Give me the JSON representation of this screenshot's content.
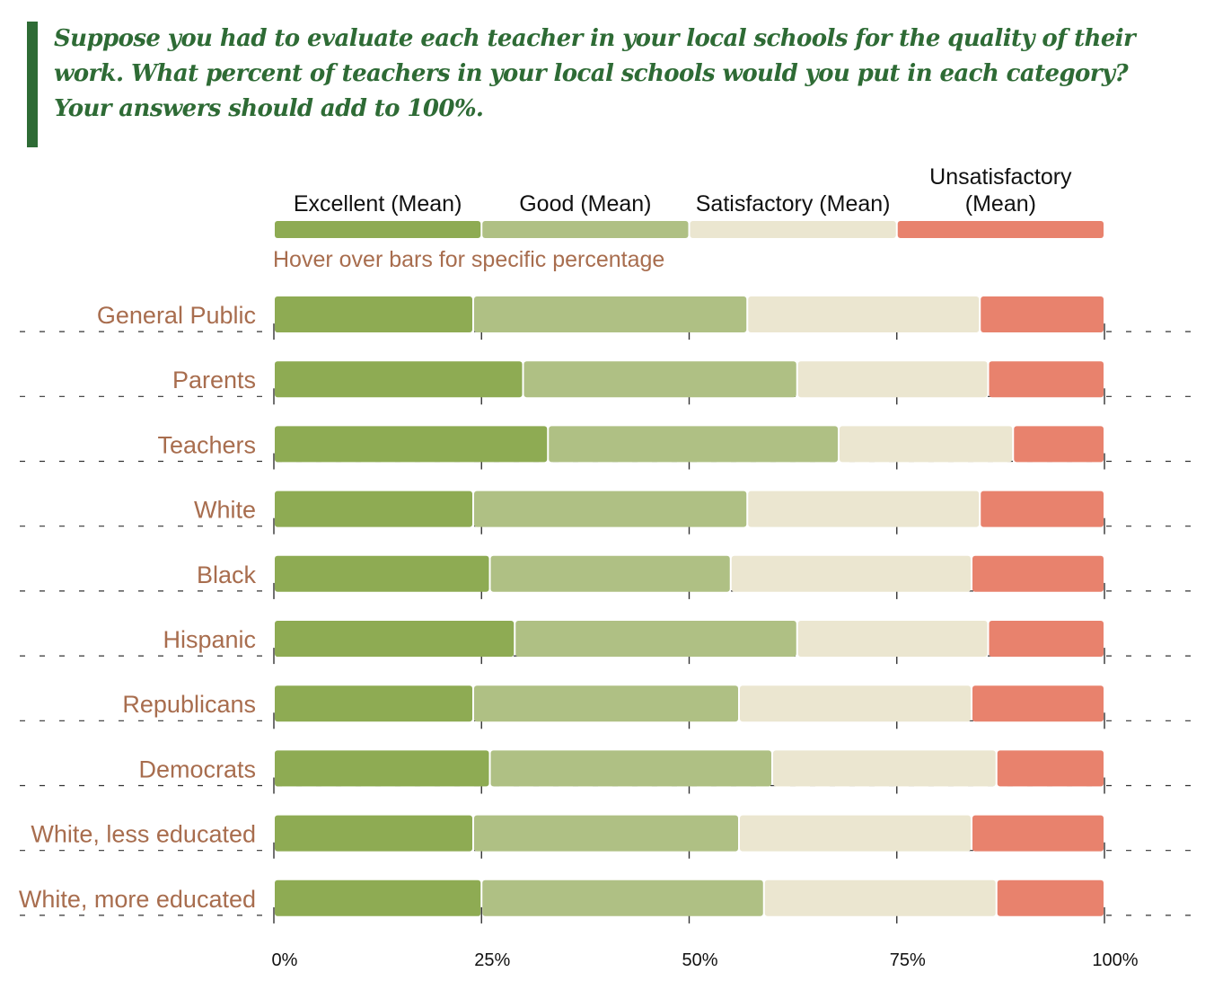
{
  "question": {
    "text": "Suppose you had to evaluate each teacher in your local schools for the quality of their work. What percent of teachers in your local schools would you put in each category? Your answers should add to 100%."
  },
  "hint": "Hover over bars for specific percentage",
  "colors": {
    "accent": "#2e6b35",
    "label": "#a86d4e",
    "excellent": "#8eab53",
    "good": "#afc084",
    "satisfactory": "#ebe6d0",
    "unsatisfactory": "#e8826d"
  },
  "chart_data": {
    "type": "bar",
    "orientation": "horizontal",
    "stacked": true,
    "categories": [
      "General Public",
      "Parents",
      "Teachers",
      "White",
      "Black",
      "Hispanic",
      "Republicans",
      "Democrats",
      "White, less educated",
      "White, more educated"
    ],
    "series": [
      {
        "name": "Excellent (Mean)",
        "values": [
          24,
          30,
          33,
          24,
          26,
          29,
          24,
          26,
          24,
          25
        ]
      },
      {
        "name": "Good (Mean)",
        "values": [
          33,
          33,
          35,
          33,
          29,
          34,
          32,
          34,
          32,
          34
        ]
      },
      {
        "name": "Satisfactory (Mean)",
        "values": [
          28,
          23,
          21,
          28,
          29,
          23,
          28,
          27,
          28,
          28
        ]
      },
      {
        "name": "Unsatisfactory (Mean)",
        "values": [
          15,
          14,
          11,
          15,
          16,
          14,
          16,
          13,
          16,
          13
        ]
      }
    ],
    "legend_lines": [
      [
        "Excellent (Mean)"
      ],
      [
        "Good (Mean)"
      ],
      [
        "Satisfactory (Mean)"
      ],
      [
        "Unsatisfactory",
        "(Mean)"
      ]
    ],
    "xlim": [
      0,
      100
    ],
    "xticks": [
      0,
      25,
      50,
      75,
      100
    ],
    "xtick_labels": [
      "0%",
      "25%",
      "50%",
      "75%",
      "100%"
    ],
    "legend_position": "top",
    "grid": "dashed horizontal separators"
  }
}
